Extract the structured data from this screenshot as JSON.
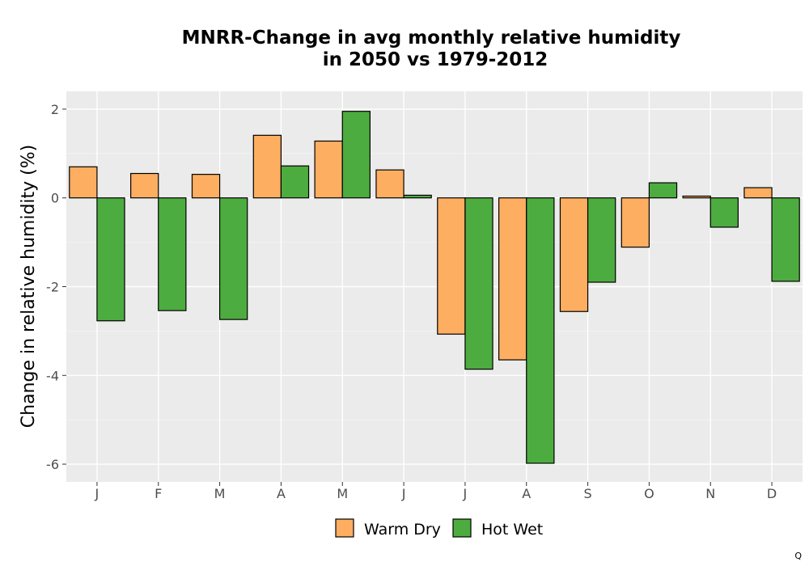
{
  "chart_data": {
    "type": "bar",
    "title": [
      "MNRR-Change in avg monthly relative humidity",
      "in 2050 vs 1979-2012"
    ],
    "xlabel": "",
    "ylabel": "Change in relative humidity (%)",
    "categories": [
      "J",
      "F",
      "M",
      "A",
      "M",
      "J",
      "J",
      "A",
      "S",
      "O",
      "N",
      "D"
    ],
    "ylim": [
      -6.4,
      2.4
    ],
    "yticks": [
      2,
      0,
      -2,
      -4,
      -6
    ],
    "ytick_labels": [
      "2",
      "0",
      "-2",
      "-4",
      "-6"
    ],
    "grid": true,
    "legend_position": "bottom",
    "series": [
      {
        "name": "Warm Dry",
        "color": "#FDAE61",
        "values": [
          0.7,
          0.55,
          0.53,
          1.41,
          1.28,
          0.63,
          -3.07,
          -3.65,
          -2.56,
          -1.11,
          0.04,
          0.23
        ]
      },
      {
        "name": "Hot Wet",
        "color": "#4DAC3F",
        "values": [
          -2.77,
          -2.54,
          -2.74,
          0.72,
          1.95,
          0.06,
          -3.86,
          -5.98,
          -1.9,
          0.34,
          -0.66,
          -1.88
        ]
      }
    ]
  },
  "corner_mark": "Q"
}
